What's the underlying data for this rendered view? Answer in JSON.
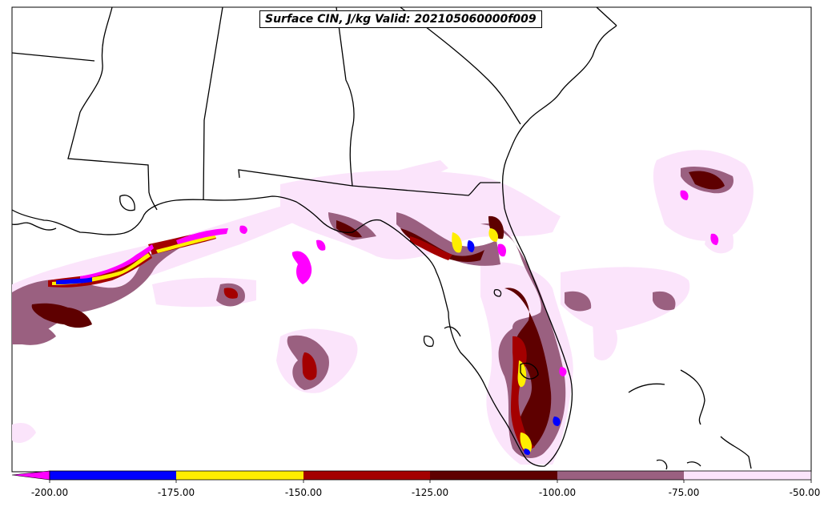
{
  "title": "Surface CIN, J/kg Valid: 202105060000f009",
  "colorbar": {
    "ticks": [
      "-200.00",
      "-175.00",
      "-150.00",
      "-125.00",
      "-100.00",
      "-75.00",
      "-50.00"
    ],
    "colors": [
      "#0000ff",
      "#ffee00",
      "#a40000",
      "#5e0000",
      "#9a6080",
      "#fbe4fb"
    ],
    "extend_low_color": "#ff00ff"
  },
  "map": {
    "region": "Southeast US / Gulf of Mexico / Florida",
    "field_levels": {
      "below_-200": "#ff00ff",
      "-200_to_-175": "#0000ff",
      "-175_to_-150": "#ffee00",
      "-150_to_-125": "#a40000",
      "-125_to_-100": "#5e0000",
      "-100_to_-75": "#9a6080",
      "-75_to_-50": "#fbe4fb"
    }
  }
}
